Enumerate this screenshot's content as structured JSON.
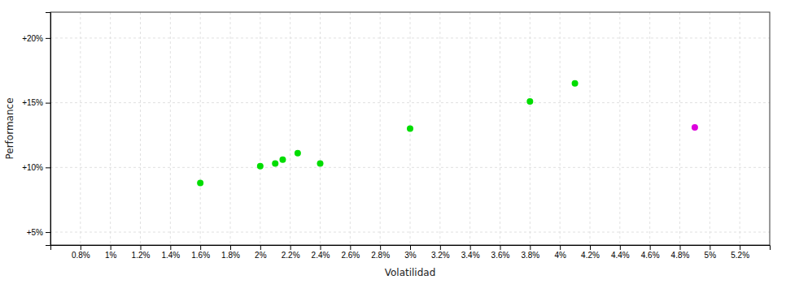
{
  "chart_data": {
    "type": "scatter",
    "xlabel": "Volatilidad",
    "ylabel": "Performance",
    "xlim": [
      0.006,
      0.054
    ],
    "ylim": [
      0.04,
      0.22
    ],
    "xticks": [
      {
        "value": 0.008,
        "label": "0.8%"
      },
      {
        "value": 0.01,
        "label": "1%"
      },
      {
        "value": 0.012,
        "label": "1.2%"
      },
      {
        "value": 0.014,
        "label": "1.4%"
      },
      {
        "value": 0.016,
        "label": "1.6%"
      },
      {
        "value": 0.018,
        "label": "1.8%"
      },
      {
        "value": 0.02,
        "label": "2%"
      },
      {
        "value": 0.022,
        "label": "2.2%"
      },
      {
        "value": 0.024,
        "label": "2.4%"
      },
      {
        "value": 0.026,
        "label": "2.6%"
      },
      {
        "value": 0.028,
        "label": "2.8%"
      },
      {
        "value": 0.03,
        "label": "3%"
      },
      {
        "value": 0.032,
        "label": "3.2%"
      },
      {
        "value": 0.034,
        "label": "3.4%"
      },
      {
        "value": 0.036,
        "label": "3.6%"
      },
      {
        "value": 0.038,
        "label": "3.8%"
      },
      {
        "value": 0.04,
        "label": "4%"
      },
      {
        "value": 0.042,
        "label": "4.2%"
      },
      {
        "value": 0.044,
        "label": "4.4%"
      },
      {
        "value": 0.046,
        "label": "4.6%"
      },
      {
        "value": 0.048,
        "label": "4.8%"
      },
      {
        "value": 0.05,
        "label": "5%"
      },
      {
        "value": 0.052,
        "label": "5.2%"
      }
    ],
    "yticks": [
      {
        "value": 0.05,
        "label": "+5%"
      },
      {
        "value": 0.1,
        "label": "+10%"
      },
      {
        "value": 0.15,
        "label": "+15%"
      },
      {
        "value": 0.2,
        "label": "+20%"
      }
    ],
    "grid": true,
    "series": [
      {
        "color": "#00dd00",
        "x": [
          0.016,
          0.02,
          0.021,
          0.0215,
          0.0225,
          0.024,
          0.03,
          0.038,
          0.041
        ],
        "values": [
          0.088,
          0.101,
          0.103,
          0.106,
          0.111,
          0.103,
          0.13,
          0.151,
          0.165
        ]
      },
      {
        "color": "#dd00dd",
        "x": [
          0.049
        ],
        "values": [
          0.131
        ]
      }
    ]
  }
}
